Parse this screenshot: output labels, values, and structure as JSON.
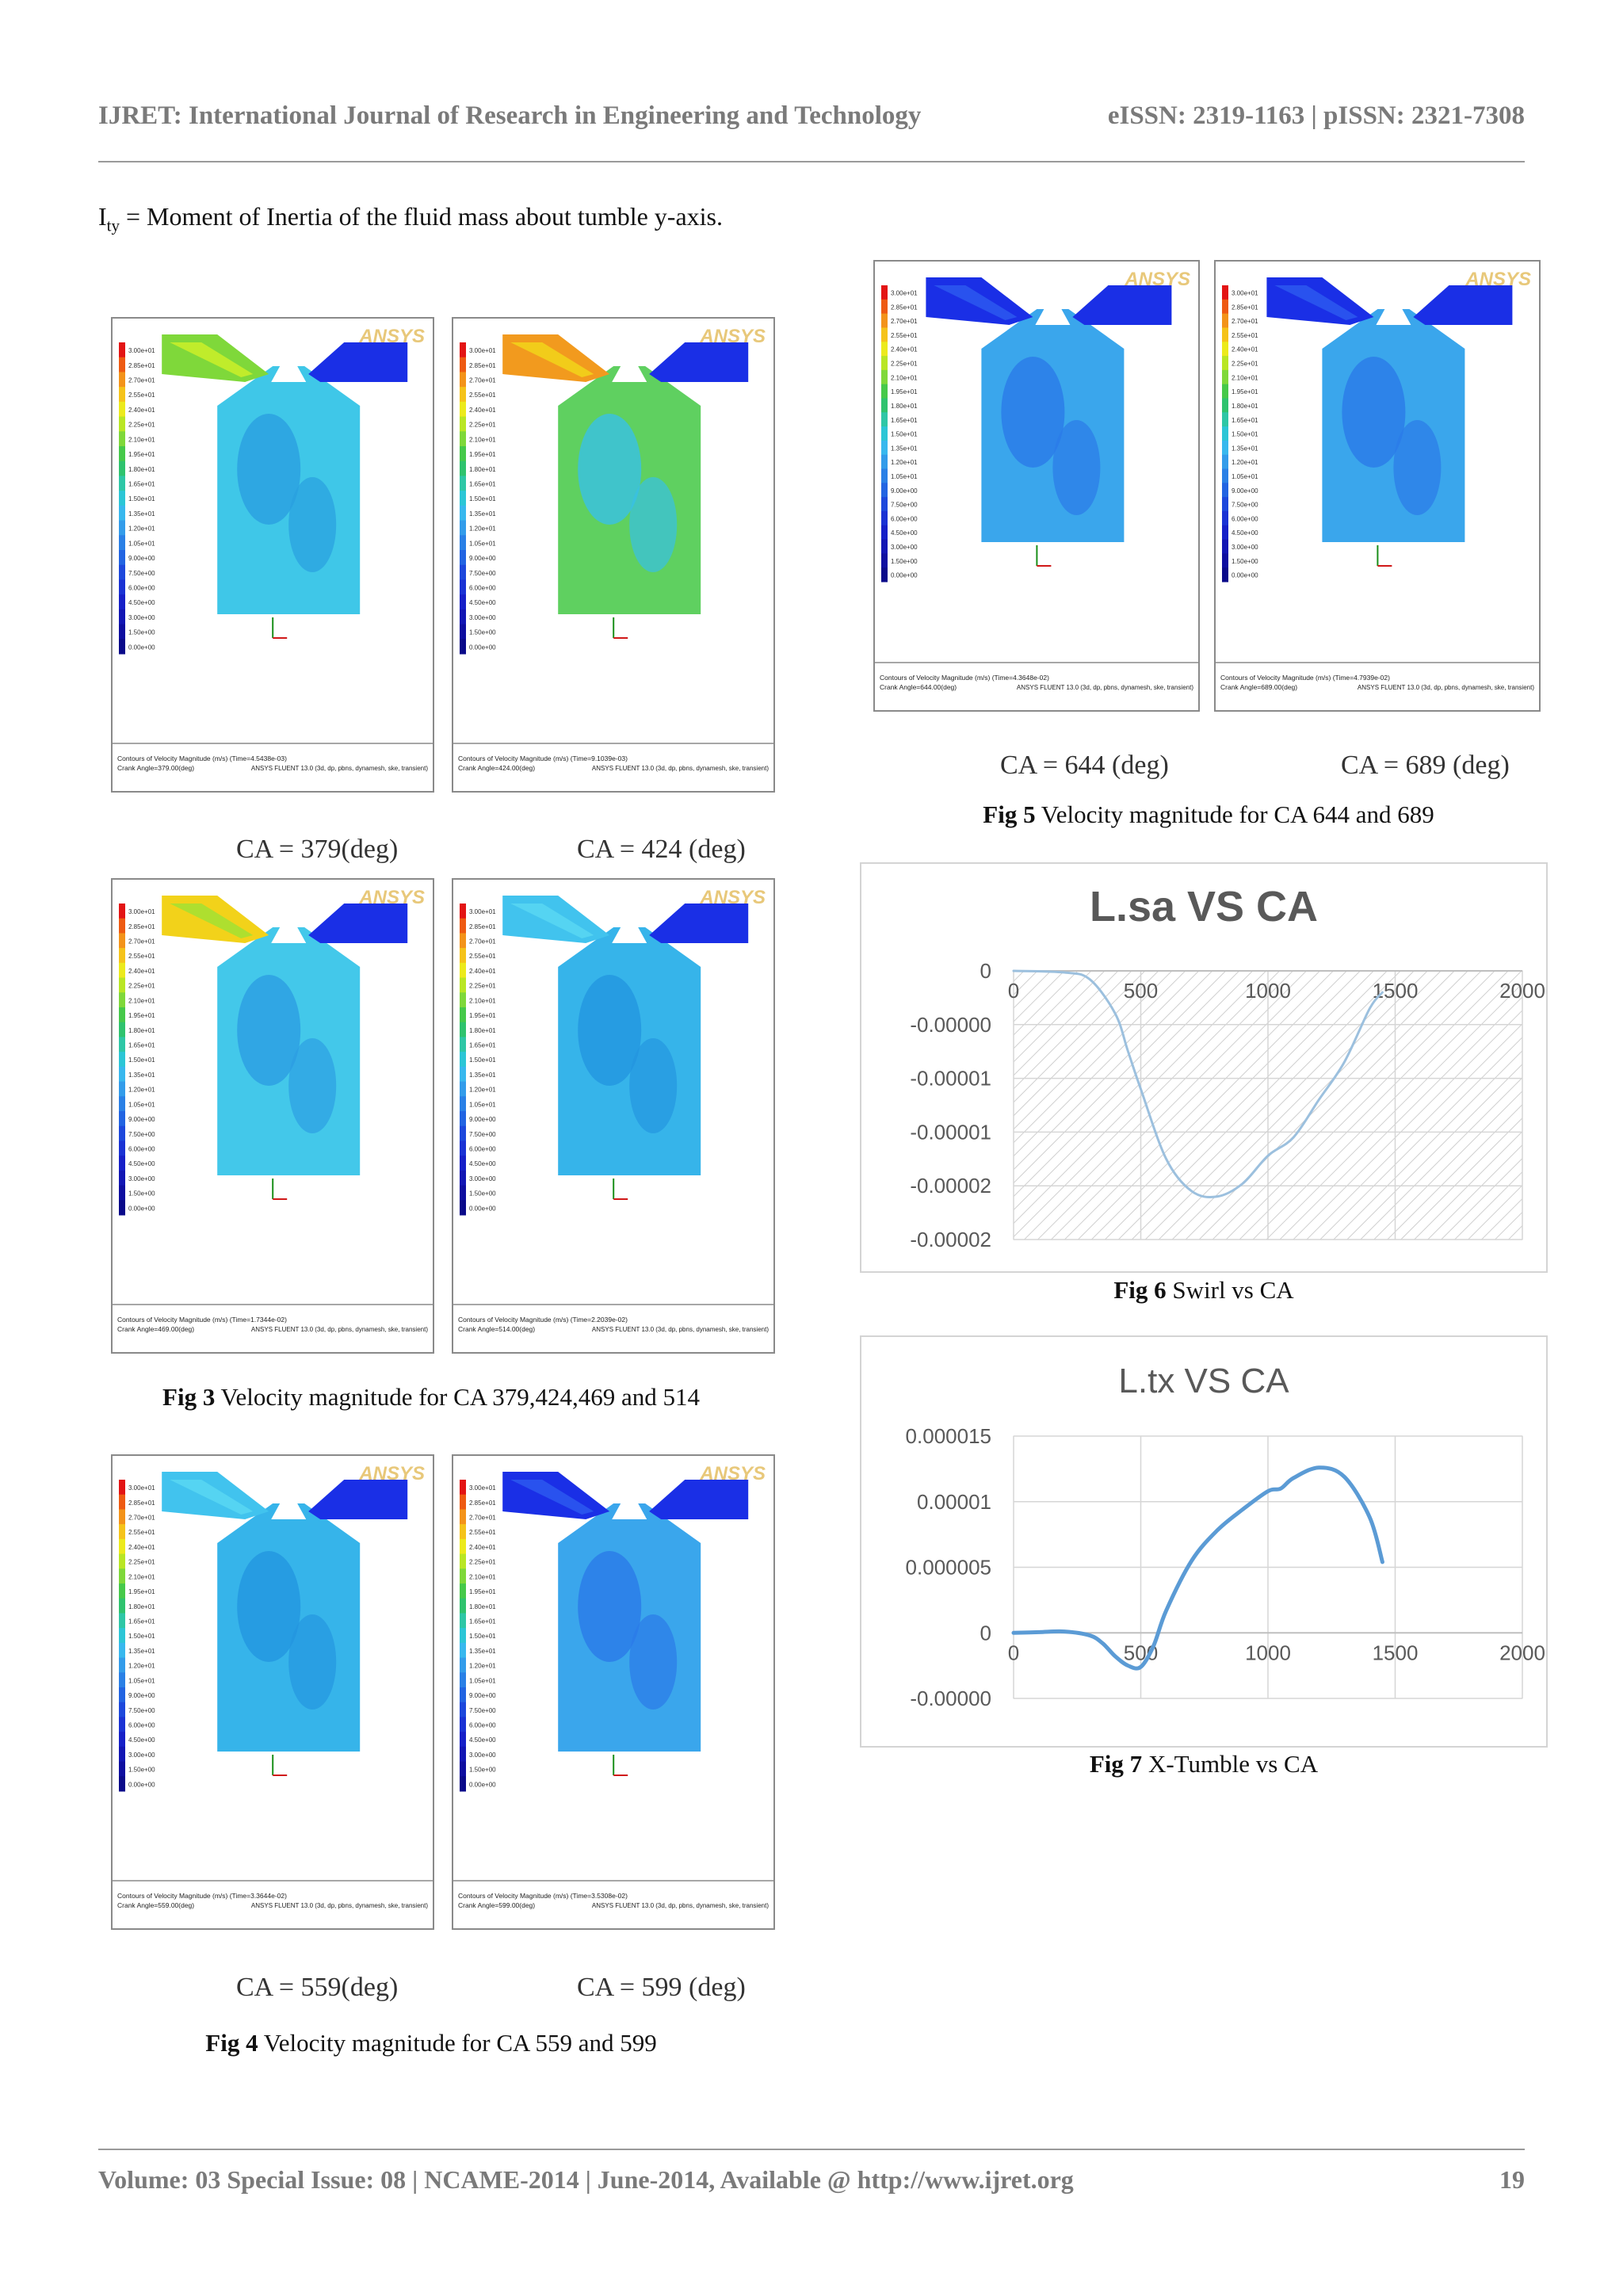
{
  "header": {
    "journal": "IJRET: International Journal of Research in Engineering and Technology",
    "issn": "eISSN: 2319-1163 | pISSN: 2321-7308"
  },
  "body": {
    "symbol": "I",
    "symbol_sub": "ty",
    "definition": " = Moment of Inertia of the fluid mass about tumble y-axis."
  },
  "contour_panels": {
    "brand": "ANSYS",
    "legend_values": [
      "3.00e+01",
      "2.85e+01",
      "2.70e+01",
      "2.55e+01",
      "2.40e+01",
      "2.25e+01",
      "2.10e+01",
      "1.95e+01",
      "1.80e+01",
      "1.65e+01",
      "1.50e+01",
      "1.35e+01",
      "1.20e+01",
      "1.05e+01",
      "9.00e+00",
      "7.50e+00",
      "6.00e+00",
      "4.50e+00",
      "3.00e+00",
      "1.50e+00",
      "0.00e+00"
    ],
    "solver": "ANSYS FLUENT 13.0 (3d, dp, pbns, dynamesh, ske, transient)",
    "panels": [
      {
        "id": "ca379",
        "footer_line1": "Contours of Velocity Magnitude (m/s)  (Time=4.5438e-03)",
        "footer_line2": "Crank Angle=379.00(deg)",
        "ca_label": "CA = 379(deg)",
        "color_key": "yellow-green"
      },
      {
        "id": "ca424",
        "footer_line1": "Contours of Velocity Magnitude (m/s)  (Time=9.1039e-03)",
        "footer_line2": "Crank Angle=424.00(deg)",
        "ca_label": "CA = 424 (deg)",
        "color_key": "orange"
      },
      {
        "id": "ca469",
        "footer_line1": "Contours of Velocity Magnitude (m/s)  (Time=1.7344e-02)",
        "footer_line2": "Crank Angle=469.00(deg)",
        "ca_label": "",
        "color_key": "yellow"
      },
      {
        "id": "ca514",
        "footer_line1": "Contours of Velocity Magnitude (m/s)  (Time=2.2039e-02)",
        "footer_line2": "Crank Angle=514.00(deg)",
        "ca_label": "",
        "color_key": "cyan"
      },
      {
        "id": "ca559",
        "footer_line1": "Contours of Velocity Magnitude (m/s)  (Time=3.3644e-02)",
        "footer_line2": "Crank Angle=559.00(deg)",
        "ca_label": "CA = 559(deg)",
        "color_key": "cyan"
      },
      {
        "id": "ca599",
        "footer_line1": "Contours of Velocity Magnitude (m/s)  (Time=3.5308e-02)",
        "footer_line2": "Crank Angle=599.00(deg)",
        "ca_label": "CA = 599 (deg)",
        "color_key": "blue"
      },
      {
        "id": "ca644",
        "footer_line1": "Contours of Velocity Magnitude (m/s)  (Time=4.3648e-02)",
        "footer_line2": "Crank Angle=644.00(deg)",
        "ca_label": "CA = 644 (deg)",
        "color_key": "blue"
      },
      {
        "id": "ca689",
        "footer_line1": "Contours of Velocity Magnitude (m/s)  (Time=4.7939e-02)",
        "footer_line2": "Crank Angle=689.00(deg)",
        "ca_label": "CA = 689 (deg)",
        "color_key": "blue"
      }
    ]
  },
  "captions": {
    "fig3_num": "Fig 3",
    "fig3_text": " Velocity magnitude for CA 379,424,469 and 514",
    "fig4_num": "Fig 4",
    "fig4_text": " Velocity magnitude for CA 559 and 599",
    "fig5_num": "Fig 5",
    "fig5_text": " Velocity magnitude for CA 644 and 689",
    "fig6_num": "Fig 6",
    "fig6_text": " Swirl vs CA",
    "fig7_num": "Fig 7",
    "fig7_text": " X-Tumble vs CA"
  },
  "chart_data": [
    {
      "type": "line",
      "title": "L.sa VS CA",
      "xlabel": "",
      "ylabel": "",
      "xlim": [
        0,
        2000
      ],
      "x_ticks": [
        "0",
        "500",
        "1000",
        "1500",
        "2000"
      ],
      "y_ticks": [
        "0",
        "-0.00000",
        "-0.00001",
        "-0.00001",
        "-0.00002",
        "-0.00002"
      ],
      "ylim": [
        -2.5e-05,
        0
      ],
      "background": "hatched",
      "line_color": "#9cc0de",
      "series": [
        {
          "x": [
            0,
            200,
            300,
            400,
            450,
            500,
            600,
            700,
            800,
            900,
            1000,
            1100,
            1200,
            1300,
            1400,
            1450
          ],
          "y": [
            0,
            -1.5e-07,
            -8e-07,
            -4e-06,
            -7.5e-06,
            -1.1e-05,
            -1.75e-05,
            -2.05e-05,
            -2.1e-05,
            -1.98e-05,
            -1.72e-05,
            -1.55e-05,
            -1.2e-05,
            -8.5e-06,
            -3.5e-06,
            -2e-06
          ]
        }
      ]
    },
    {
      "type": "line",
      "title": "L.tx VS CA",
      "xlabel": "",
      "ylabel": "",
      "xlim": [
        0,
        2000
      ],
      "x_ticks": [
        "0",
        "500",
        "1000",
        "1500",
        "2000"
      ],
      "y_ticks": [
        "0.000015",
        "0.00001",
        "0.000005",
        "0",
        "-0.00000"
      ],
      "ylim": [
        -5e-06,
        1.5e-05
      ],
      "background": "grid",
      "line_color": "#5b9bd5",
      "series": [
        {
          "x": [
            0,
            100,
            200,
            300,
            350,
            400,
            450,
            500,
            550,
            600,
            700,
            800,
            900,
            1000,
            1050,
            1100,
            1200,
            1300,
            1400,
            1450
          ],
          "y": [
            0,
            5e-08,
            1e-07,
            -2e-07,
            -8e-07,
            -1.8e-06,
            -2.5e-06,
            -2.6e-06,
            -1e-06,
            1.7e-06,
            5.5e-06,
            7.8e-06,
            9.4e-06,
            1.08e-05,
            1.1e-05,
            1.18e-05,
            1.26e-05,
            1.19e-05,
            8.8e-06,
            5.4e-06
          ]
        }
      ]
    }
  ],
  "footer": {
    "left": "Volume: 03 Special Issue: 08 | NCAME-2014 | June-2014, Available @ http://www.ijret.org",
    "page": "19"
  }
}
